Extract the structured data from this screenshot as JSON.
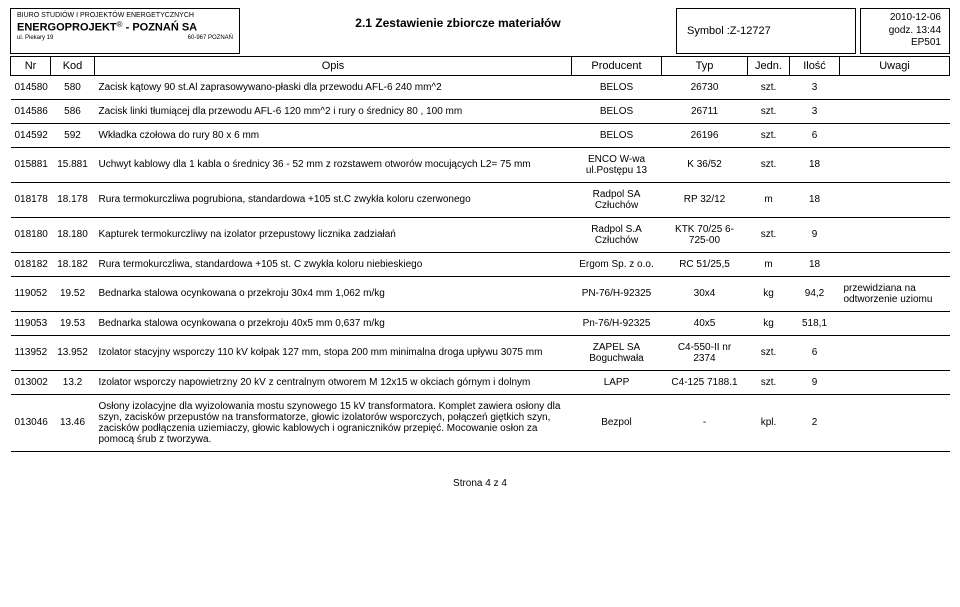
{
  "header": {
    "company_line1": "BIURO STUDIÓW I PROJEKTÓW ENERGETYCZNYCH",
    "company_line2a": "ENERGOPROJEKT",
    "company_sup": "®",
    "company_line2b": " - POZNAŃ SA",
    "company_addr": "ul. Piekary 19",
    "company_post": "60-967 POZNAŃ",
    "title": "2.1 Zestawienie zbiorcze materiałów",
    "symbol_label": "Symbol : ",
    "symbol_value": "Z-12727",
    "date": "2010-12-06",
    "time": "godz. 13:44",
    "code": "EP501"
  },
  "columns": {
    "nr": "Nr",
    "kod": "Kod",
    "opis": "Opis",
    "producent": "Producent",
    "typ": "Typ",
    "jedn": "Jedn.",
    "ilosc": "Ilość",
    "uwagi": "Uwagi"
  },
  "rows": [
    {
      "nr": "014580",
      "kod": "580",
      "opis": "Zacisk kątowy 90 st.Al zaprasowywano-płaski dla przewodu AFL-6 240 mm^2",
      "prod": "BELOS",
      "typ": "26730",
      "jedn": "szt.",
      "ilo": "3",
      "uw": ""
    },
    {
      "nr": "014586",
      "kod": "586",
      "opis": "Zacisk linki tłumiącej dla przewodu AFL-6 120 mm^2 i rury o średnicy 80 , 100 mm",
      "prod": "BELOS",
      "typ": "26711",
      "jedn": "szt.",
      "ilo": "3",
      "uw": ""
    },
    {
      "nr": "014592",
      "kod": "592",
      "opis": "Wkładka czołowa do rury 80 x 6 mm",
      "prod": "BELOS",
      "typ": "26196",
      "jedn": "szt.",
      "ilo": "6",
      "uw": ""
    },
    {
      "nr": "015881",
      "kod": "15.881",
      "opis": "Uchwyt kablowy dla 1 kabla o średnicy 36 - 52 mm z rozstawem otworów mocujących L2= 75 mm",
      "prod": "ENCO W-wa ul.Postępu 13",
      "typ": "K 36/52",
      "jedn": "szt.",
      "ilo": "18",
      "uw": ""
    },
    {
      "nr": "018178",
      "kod": "18.178",
      "opis": "Rura termokurczliwa pogrubiona, standardowa +105 st.C zwykła koloru czerwonego",
      "prod": "Radpol SA Człuchów",
      "typ": "RP 32/12",
      "jedn": "m",
      "ilo": "18",
      "uw": ""
    },
    {
      "nr": "018180",
      "kod": "18.180",
      "opis": "Kapturek termokurczliwy na izolator przepustowy licznika zadziałań",
      "prod": "Radpol S.A Człuchów",
      "typ": "KTK 70/25 6-725-00",
      "jedn": "szt.",
      "ilo": "9",
      "uw": ""
    },
    {
      "nr": "018182",
      "kod": "18.182",
      "opis": "Rura termokurczliwa, standardowa +105 st. C zwykła koloru niebieskiego",
      "prod": "Ergom Sp. z o.o.",
      "typ": "RC 51/25,5",
      "jedn": "m",
      "ilo": "18",
      "uw": ""
    },
    {
      "nr": "119052",
      "kod": "19.52",
      "opis": "Bednarka stalowa ocynkowana o przekroju 30x4 mm      1,062 m/kg",
      "prod": "PN-76/H-92325",
      "typ": "30x4",
      "jedn": "kg",
      "ilo": "94,2",
      "uw": "przewidziana na odtworzenie uziomu"
    },
    {
      "nr": "119053",
      "kod": "19.53",
      "opis": "Bednarka stalowa ocynkowana o przekroju 40x5 mm      0,637 m/kg",
      "prod": "Pn-76/H-92325",
      "typ": "40x5",
      "jedn": "kg",
      "ilo": "518,1",
      "uw": ""
    },
    {
      "nr": "113952",
      "kod": "13.952",
      "opis": "Izolator stacyjny wsporczy 110 kV kołpak 127 mm, stopa 200 mm minimalna droga upływu 3075 mm",
      "prod": "ZAPEL SA Boguchwała",
      "typ": "C4-550-II nr 2374",
      "jedn": "szt.",
      "ilo": "6",
      "uw": ""
    },
    {
      "nr": "013002",
      "kod": "13.2",
      "opis": "Izolator wsporczy napowietrzny 20 kV z centralnym otworem M 12x15 w okciach górnym  i dolnym",
      "prod": "LAPP",
      "typ": "C4-125 7188.1",
      "jedn": "szt.",
      "ilo": "9",
      "uw": ""
    },
    {
      "nr": "013046",
      "kod": "13.46",
      "opis": "Osłony izolacyjne dla wyizolowania mostu szynowego 15 kV transformatora. Komplet zawiera osłony dla szyn, zacisków przepustów na transformatorze, głowic izolatorów wsporczych, połączeń giętkich szyn, zacisków podłączenia uziemiaczy, głowic kablowych i ograniczników przepięć. Mocowanie osłon za pomocą śrub z tworzywa.",
      "prod": "Bezpol",
      "typ": "-",
      "jedn": "kpl.",
      "ilo": "2",
      "uw": ""
    }
  ],
  "footer": "Strona 4 z 4"
}
